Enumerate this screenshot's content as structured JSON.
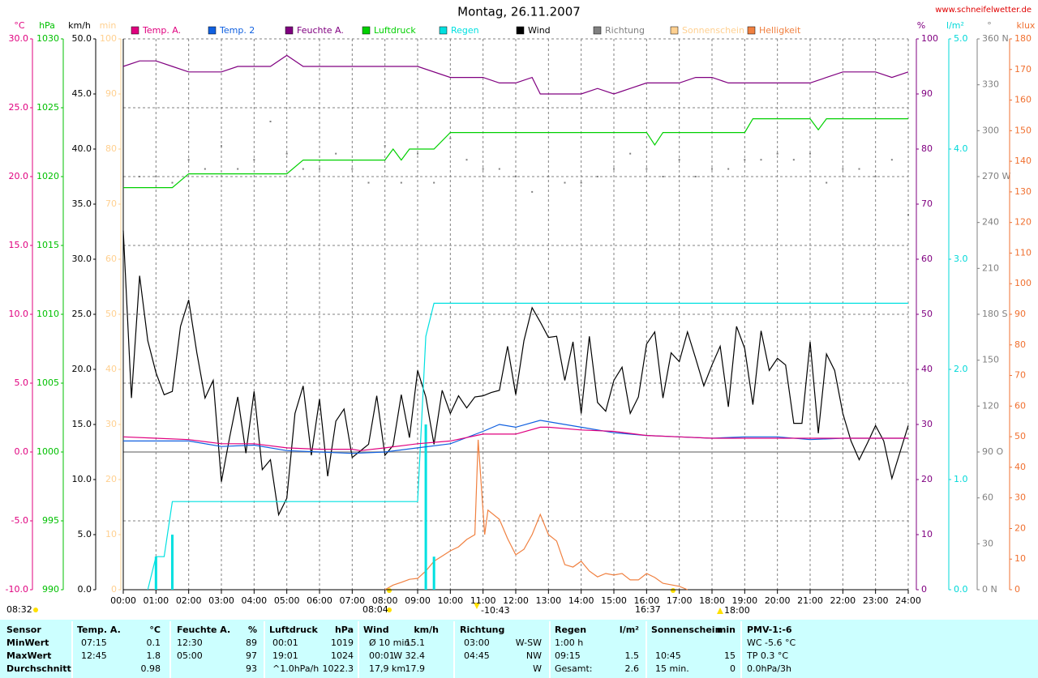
{
  "chart_data": {
    "type": "line",
    "title": "Montag, 26.11.2007",
    "source": "www.schneifelwetter.de",
    "grid": true,
    "xlim": [
      0,
      24
    ],
    "xticks": [
      {
        "value": 0,
        "label": "00:00"
      },
      {
        "value": 1,
        "label": "01:00"
      },
      {
        "value": 2,
        "label": "02:00"
      },
      {
        "value": 3,
        "label": "03:00"
      },
      {
        "value": 4,
        "label": "04:00"
      },
      {
        "value": 5,
        "label": "05:00"
      },
      {
        "value": 6,
        "label": "06:00"
      },
      {
        "value": 7,
        "label": "07:00"
      },
      {
        "value": 8,
        "label": "08:00"
      },
      {
        "value": 9,
        "label": "09:00"
      },
      {
        "value": 10,
        "label": "10:00"
      },
      {
        "value": 11,
        "label": "11:00"
      },
      {
        "value": 12,
        "label": "12:00"
      },
      {
        "value": 13,
        "label": "13:00"
      },
      {
        "value": 14,
        "label": "14:00"
      },
      {
        "value": 15,
        "label": "15:00"
      },
      {
        "value": 16,
        "label": "16:00"
      },
      {
        "value": 17,
        "label": "17:00"
      },
      {
        "value": 18,
        "label": "18:00"
      },
      {
        "value": 19,
        "label": "19:00"
      },
      {
        "value": 20,
        "label": "20:00"
      },
      {
        "value": 21,
        "label": "21:00"
      },
      {
        "value": 22,
        "label": "22:00"
      },
      {
        "value": 23,
        "label": "23:00"
      },
      {
        "value": 24,
        "label": "24:00"
      }
    ],
    "axes": [
      {
        "unit": "°C",
        "color": "#e0007f",
        "lim": [
          -10,
          30
        ],
        "ticks": [
          {
            "value": -10,
            "label": "-10.0"
          },
          {
            "value": -5,
            "label": "-5.0"
          },
          {
            "value": 0,
            "label": "0.0"
          },
          {
            "value": 5,
            "label": "5.0"
          },
          {
            "value": 10,
            "label": "10.0"
          },
          {
            "value": 15,
            "label": "15.0"
          },
          {
            "value": 20,
            "label": "20.0"
          },
          {
            "value": 25,
            "label": "25.0"
          },
          {
            "value": 30,
            "label": "30.0"
          }
        ]
      },
      {
        "unit": "hPa",
        "color": "#00c000",
        "lim": [
          990,
          1030
        ],
        "ticks": [
          990,
          995,
          1000,
          1005,
          1010,
          1015,
          1020,
          1025,
          1030
        ]
      },
      {
        "unit": "km/h",
        "color": "#000000",
        "lim": [
          0,
          50
        ],
        "ticks": [
          {
            "value": 0,
            "label": "0.0"
          },
          {
            "value": 5,
            "label": "5.0"
          },
          {
            "value": 10,
            "label": "10.0"
          },
          {
            "value": 15,
            "label": "15.0"
          },
          {
            "value": 20,
            "label": "20.0"
          },
          {
            "value": 25,
            "label": "25.0"
          },
          {
            "value": 30,
            "label": "30.0"
          },
          {
            "value": 35,
            "label": "35.0"
          },
          {
            "value": 40,
            "label": "40.0"
          },
          {
            "value": 45,
            "label": "45.0"
          },
          {
            "value": 50,
            "label": "50.0"
          }
        ]
      },
      {
        "unit": "min",
        "color": "#ffd090",
        "lim": [
          0,
          100
        ],
        "ticks": [
          0,
          10,
          20,
          30,
          40,
          50,
          60,
          70,
          80,
          90,
          100
        ]
      },
      {
        "unit": "%",
        "color": "#800080",
        "lim": [
          0,
          100
        ],
        "ticks": [
          0,
          10,
          20,
          30,
          40,
          50,
          60,
          70,
          80,
          90,
          100
        ]
      },
      {
        "unit": "l/m²",
        "color": "#00d8d8",
        "lim": [
          0,
          5
        ],
        "ticks": [
          {
            "value": 0,
            "label": "0.0"
          },
          {
            "value": 1,
            "label": "1.0"
          },
          {
            "value": 2,
            "label": "2.0"
          },
          {
            "value": 3,
            "label": "3.0"
          },
          {
            "value": 4,
            "label": "4.0"
          },
          {
            "value": 5,
            "label": "5.0"
          }
        ]
      },
      {
        "unit": "°",
        "color": "#808080",
        "lim": [
          0,
          360
        ],
        "ticks": [
          {
            "value": 0,
            "label": "0 N"
          },
          30,
          60,
          {
            "value": 90,
            "label": "90 O"
          },
          120,
          150,
          {
            "value": 180,
            "label": "180 S"
          },
          210,
          240,
          {
            "value": 270,
            "label": "270 W"
          },
          300,
          330,
          {
            "value": 360,
            "label": "360 N"
          }
        ]
      },
      {
        "unit": "klux",
        "color": "#f07030",
        "lim": [
          0,
          180
        ],
        "ticks": [
          0,
          10,
          20,
          30,
          40,
          50,
          60,
          70,
          80,
          90,
          100,
          110,
          120,
          130,
          140,
          150,
          160,
          170,
          180
        ]
      }
    ],
    "series": [
      {
        "name": "Temp. A.",
        "color": "#e0007f",
        "axis": "°C",
        "kind": "line",
        "x": [
          0,
          1,
          2,
          3,
          4,
          5,
          6,
          7,
          7.25,
          8,
          9,
          10,
          11,
          12,
          12.75,
          13,
          14,
          15,
          16,
          17,
          18,
          19,
          20,
          21,
          22,
          23,
          24
        ],
        "values": [
          1.1,
          1.0,
          0.9,
          0.6,
          0.6,
          0.3,
          0.2,
          0.2,
          0.1,
          0.3,
          0.6,
          0.8,
          1.3,
          1.3,
          1.8,
          1.8,
          1.6,
          1.5,
          1.2,
          1.1,
          1.0,
          1.0,
          1.0,
          1.0,
          1.0,
          1.0,
          1.0
        ]
      },
      {
        "name": "Temp. 2",
        "color": "#1060e0",
        "axis": "°C",
        "kind": "line",
        "x": [
          0,
          1,
          2,
          3,
          4,
          5,
          6,
          7,
          8,
          9,
          10,
          11,
          11.5,
          12,
          12.75,
          13,
          14,
          15,
          16,
          17,
          18,
          19,
          20,
          21,
          22,
          23,
          24
        ],
        "values": [
          0.8,
          0.8,
          0.8,
          0.4,
          0.5,
          0.1,
          0.0,
          -0.1,
          0.0,
          0.3,
          0.6,
          1.5,
          2.0,
          1.8,
          2.3,
          2.2,
          1.8,
          1.4,
          1.2,
          1.1,
          1.0,
          1.1,
          1.1,
          0.9,
          1.0,
          1.0,
          1.0
        ]
      },
      {
        "name": "Feuchte A.",
        "color": "#800080",
        "axis": "%",
        "kind": "line",
        "x": [
          0,
          0.5,
          1,
          1.5,
          2,
          3,
          3.5,
          4,
          4.5,
          5,
          5.5,
          6,
          7,
          8,
          9,
          10,
          11,
          11.5,
          12,
          12.5,
          12.75,
          13,
          13.5,
          14,
          14.5,
          15,
          15.5,
          16,
          16.5,
          17,
          17.5,
          18,
          18.5,
          19,
          20,
          21,
          21.5,
          22,
          23,
          23.5,
          24
        ],
        "values": [
          95,
          96,
          96,
          95,
          94,
          94,
          95,
          95,
          95,
          97,
          95,
          95,
          95,
          95,
          95,
          93,
          93,
          92,
          92,
          93,
          90,
          90,
          90,
          90,
          91,
          90,
          91,
          92,
          92,
          92,
          93,
          93,
          92,
          92,
          92,
          92,
          93,
          94,
          94,
          93,
          94
        ]
      },
      {
        "name": "Luftdruck",
        "color": "#00d000",
        "axis": "hPa",
        "kind": "line",
        "x": [
          0,
          1.5,
          2,
          5,
          5.5,
          8,
          8.25,
          8.5,
          8.75,
          9.5,
          10,
          16,
          16.25,
          16.5,
          19,
          19.25,
          21,
          21.25,
          21.5,
          24
        ],
        "values": [
          1019.2,
          1019.2,
          1020.2,
          1020.2,
          1021.2,
          1021.2,
          1022,
          1021.2,
          1022,
          1022,
          1023.2,
          1023.2,
          1022.3,
          1023.2,
          1023.2,
          1024.2,
          1024.2,
          1023.4,
          1024.2,
          1024.2
        ]
      },
      {
        "name": "Regen",
        "color": "#00e0e0",
        "axis": "l/m²",
        "kind": "line",
        "x": [
          0.75,
          1,
          1.25,
          1.5,
          9,
          9.25,
          9.5,
          24
        ],
        "values": [
          0,
          0.3,
          0.3,
          0.8,
          0.8,
          2.3,
          2.6,
          2.6
        ],
        "bars": {
          "x": [
            1,
            1.5,
            9.25,
            9.5
          ],
          "values": [
            0.3,
            0.5,
            1.5,
            0.3
          ]
        }
      },
      {
        "name": "Wind",
        "color": "#000000",
        "axis": "km/h",
        "kind": "line",
        "x": [
          0,
          0.25,
          0.5,
          0.75,
          1,
          1.25,
          1.5,
          1.75,
          2,
          2.25,
          2.5,
          2.75,
          3,
          3.25,
          3.5,
          3.75,
          4,
          4.25,
          4.5,
          4.75,
          5,
          5.25,
          5.5,
          5.75,
          6,
          6.25,
          6.5,
          6.75,
          7,
          7.25,
          7.5,
          7.75,
          8,
          8.25,
          8.5,
          8.75,
          9,
          9.25,
          9.5,
          9.75,
          10,
          10.25,
          10.5,
          10.75,
          11,
          11.25,
          11.5,
          11.75,
          12,
          12.25,
          12.5,
          12.75,
          13,
          13.25,
          13.5,
          13.75,
          14,
          14.25,
          14.5,
          14.75,
          15,
          15.25,
          15.5,
          15.75,
          16,
          16.25,
          16.5,
          16.75,
          17,
          17.25,
          17.5,
          17.75,
          18,
          18.25,
          18.5,
          18.75,
          19,
          19.25,
          19.5,
          19.75,
          20,
          20.25,
          20.5,
          20.75,
          21,
          21.25,
          21.5,
          21.75,
          22,
          22.25,
          22.5,
          22.75,
          23,
          23.25,
          23.5,
          24
        ],
        "values": [
          32.6,
          17.4,
          28.5,
          22.6,
          19.7,
          17.7,
          18.0,
          23.9,
          26.3,
          21.5,
          17.4,
          19.0,
          9.8,
          13.8,
          17.5,
          12.4,
          18.0,
          10.9,
          11.8,
          6.8,
          8.3,
          16.0,
          18.5,
          12.2,
          17.3,
          10.3,
          15.3,
          16.4,
          12.0,
          12.6,
          13.2,
          17.6,
          12.2,
          13.1,
          17.7,
          13.8,
          19.9,
          17.5,
          13.2,
          18.1,
          16.0,
          17.6,
          16.5,
          17.5,
          17.6,
          17.9,
          18.1,
          22.1,
          17.7,
          22.6,
          25.6,
          24.3,
          22.9,
          23.0,
          19.0,
          22.5,
          16.0,
          23.0,
          17.0,
          16.2,
          19.0,
          20.2,
          16.0,
          17.5,
          22.3,
          23.4,
          17.4,
          21.5,
          20.7,
          23.4,
          21.0,
          18.5,
          20.4,
          22.1,
          16.6,
          23.9,
          21.9,
          16.8,
          23.5,
          19.9,
          21.0,
          20.4,
          15.1,
          15.1,
          22.5,
          14.2,
          21.4,
          19.9,
          16.0,
          13.5,
          11.8,
          13.3,
          14.9,
          13.5,
          10.1,
          14.9
        ]
      },
      {
        "name": "Richtung",
        "color": "#808080",
        "axis": "°",
        "kind": "dots",
        "x": [
          0,
          0.5,
          1,
          1.5,
          2,
          2.5,
          3,
          3.5,
          4,
          4.5,
          5,
          5.5,
          6,
          6.5,
          7,
          7.5,
          8,
          8.5,
          9,
          9.5,
          10,
          10.5,
          11,
          11.5,
          12,
          12.5,
          13,
          13.5,
          14,
          14.5,
          15,
          15.5,
          16,
          16.5,
          17,
          17.5,
          18,
          18.5,
          19,
          19.5,
          20,
          20.5,
          21,
          21.5,
          22,
          22.5,
          23,
          23.5,
          24
        ],
        "values": [
          281,
          270,
          270,
          266,
          281,
          275,
          290,
          275,
          281,
          306,
          285,
          275,
          275,
          285,
          275,
          266,
          290,
          266,
          285,
          266,
          295,
          281,
          275,
          275,
          270,
          260,
          270,
          266,
          266,
          270,
          275,
          285,
          275,
          270,
          281,
          270,
          275,
          275,
          281,
          281,
          285,
          281,
          285,
          266,
          275,
          275,
          270,
          281,
          245
        ]
      },
      {
        "name": "Sonnenschein",
        "color": "#ffd090",
        "axis": "min",
        "kind": "line",
        "x": [],
        "values": []
      },
      {
        "name": "Helligkeit",
        "color": "#f08040",
        "axis": "klux",
        "kind": "line",
        "x": [
          8,
          8.25,
          8.5,
          8.75,
          9,
          9.25,
          9.5,
          9.75,
          10,
          10.25,
          10.5,
          10.75,
          10.85,
          11.05,
          11.15,
          11.5,
          11.75,
          12,
          12.25,
          12.5,
          12.75,
          13,
          13.25,
          13.5,
          13.75,
          14,
          14.25,
          14.5,
          14.75,
          15,
          15.25,
          15.5,
          15.75,
          16,
          16.25,
          16.5,
          16.75,
          17,
          17.25
        ],
        "values": [
          0,
          1.5,
          2.4,
          3.4,
          3.7,
          6.1,
          9.3,
          11,
          12.7,
          14,
          16.4,
          18,
          49,
          18,
          26,
          23,
          16.7,
          11.4,
          13.2,
          18,
          24.6,
          18,
          15.9,
          8.2,
          7.4,
          9.3,
          6.1,
          4.2,
          5.3,
          4.8,
          5.3,
          3.2,
          3.2,
          5.3,
          4.0,
          2.1,
          1.6,
          1.1,
          0
        ]
      }
    ],
    "annotations": [
      "08:32",
      "08:04",
      "-10:43",
      "16:37",
      "18:00"
    ]
  },
  "stats": {
    "row_labels": [
      "Sensor",
      "MinWert",
      "MaxWert",
      "Durchschnitt"
    ],
    "columns": [
      {
        "header": "Temp. A.",
        "unit": "°C",
        "rows": [
          [
            "07:15",
            "0.1"
          ],
          [
            "12:45",
            "1.8"
          ],
          [
            null,
            "0.98"
          ]
        ]
      },
      {
        "header": "Feuchte A.",
        "unit": "%",
        "rows": [
          [
            "12:30",
            "89"
          ],
          [
            "05:00",
            "97"
          ],
          [
            null,
            "93"
          ]
        ]
      },
      {
        "header": "Luftdruck",
        "unit": "hPa",
        "rows": [
          [
            "00:01",
            "1019"
          ],
          [
            "19:01",
            "1024"
          ],
          [
            "^1.0hPa/h",
            "1022.3"
          ]
        ]
      },
      {
        "header": "Wind",
        "unit": "km/h",
        "rows": [
          [
            "Ø 10 min.",
            "15.1"
          ],
          [
            "00:01",
            "W 32.4"
          ],
          [
            "17,9 km",
            "17.9"
          ]
        ]
      },
      {
        "header": "Richtung",
        "unit": null,
        "rows": [
          [
            "03:00",
            "W-SW"
          ],
          [
            "04:45",
            "NW"
          ],
          [
            null,
            "W"
          ]
        ]
      },
      {
        "header": "Regen",
        "unit": "l/m²",
        "rows": [
          [
            "1:00 h",
            null
          ],
          [
            "09:15",
            "1.5"
          ],
          [
            "Gesamt:",
            "2.6"
          ]
        ]
      },
      {
        "header": "Sonnenschein",
        "unit": "min",
        "rows": [
          [
            null,
            null
          ],
          [
            "10:45",
            "15"
          ],
          [
            "15 min.",
            "0"
          ]
        ]
      },
      {
        "header": "PMV-1:-6",
        "unit": null,
        "rows": [
          [
            "WC -5.6 °C",
            null
          ],
          [
            "TP 0.3 °C",
            null
          ],
          [
            "0.0hPa/3h",
            null
          ]
        ]
      }
    ]
  }
}
